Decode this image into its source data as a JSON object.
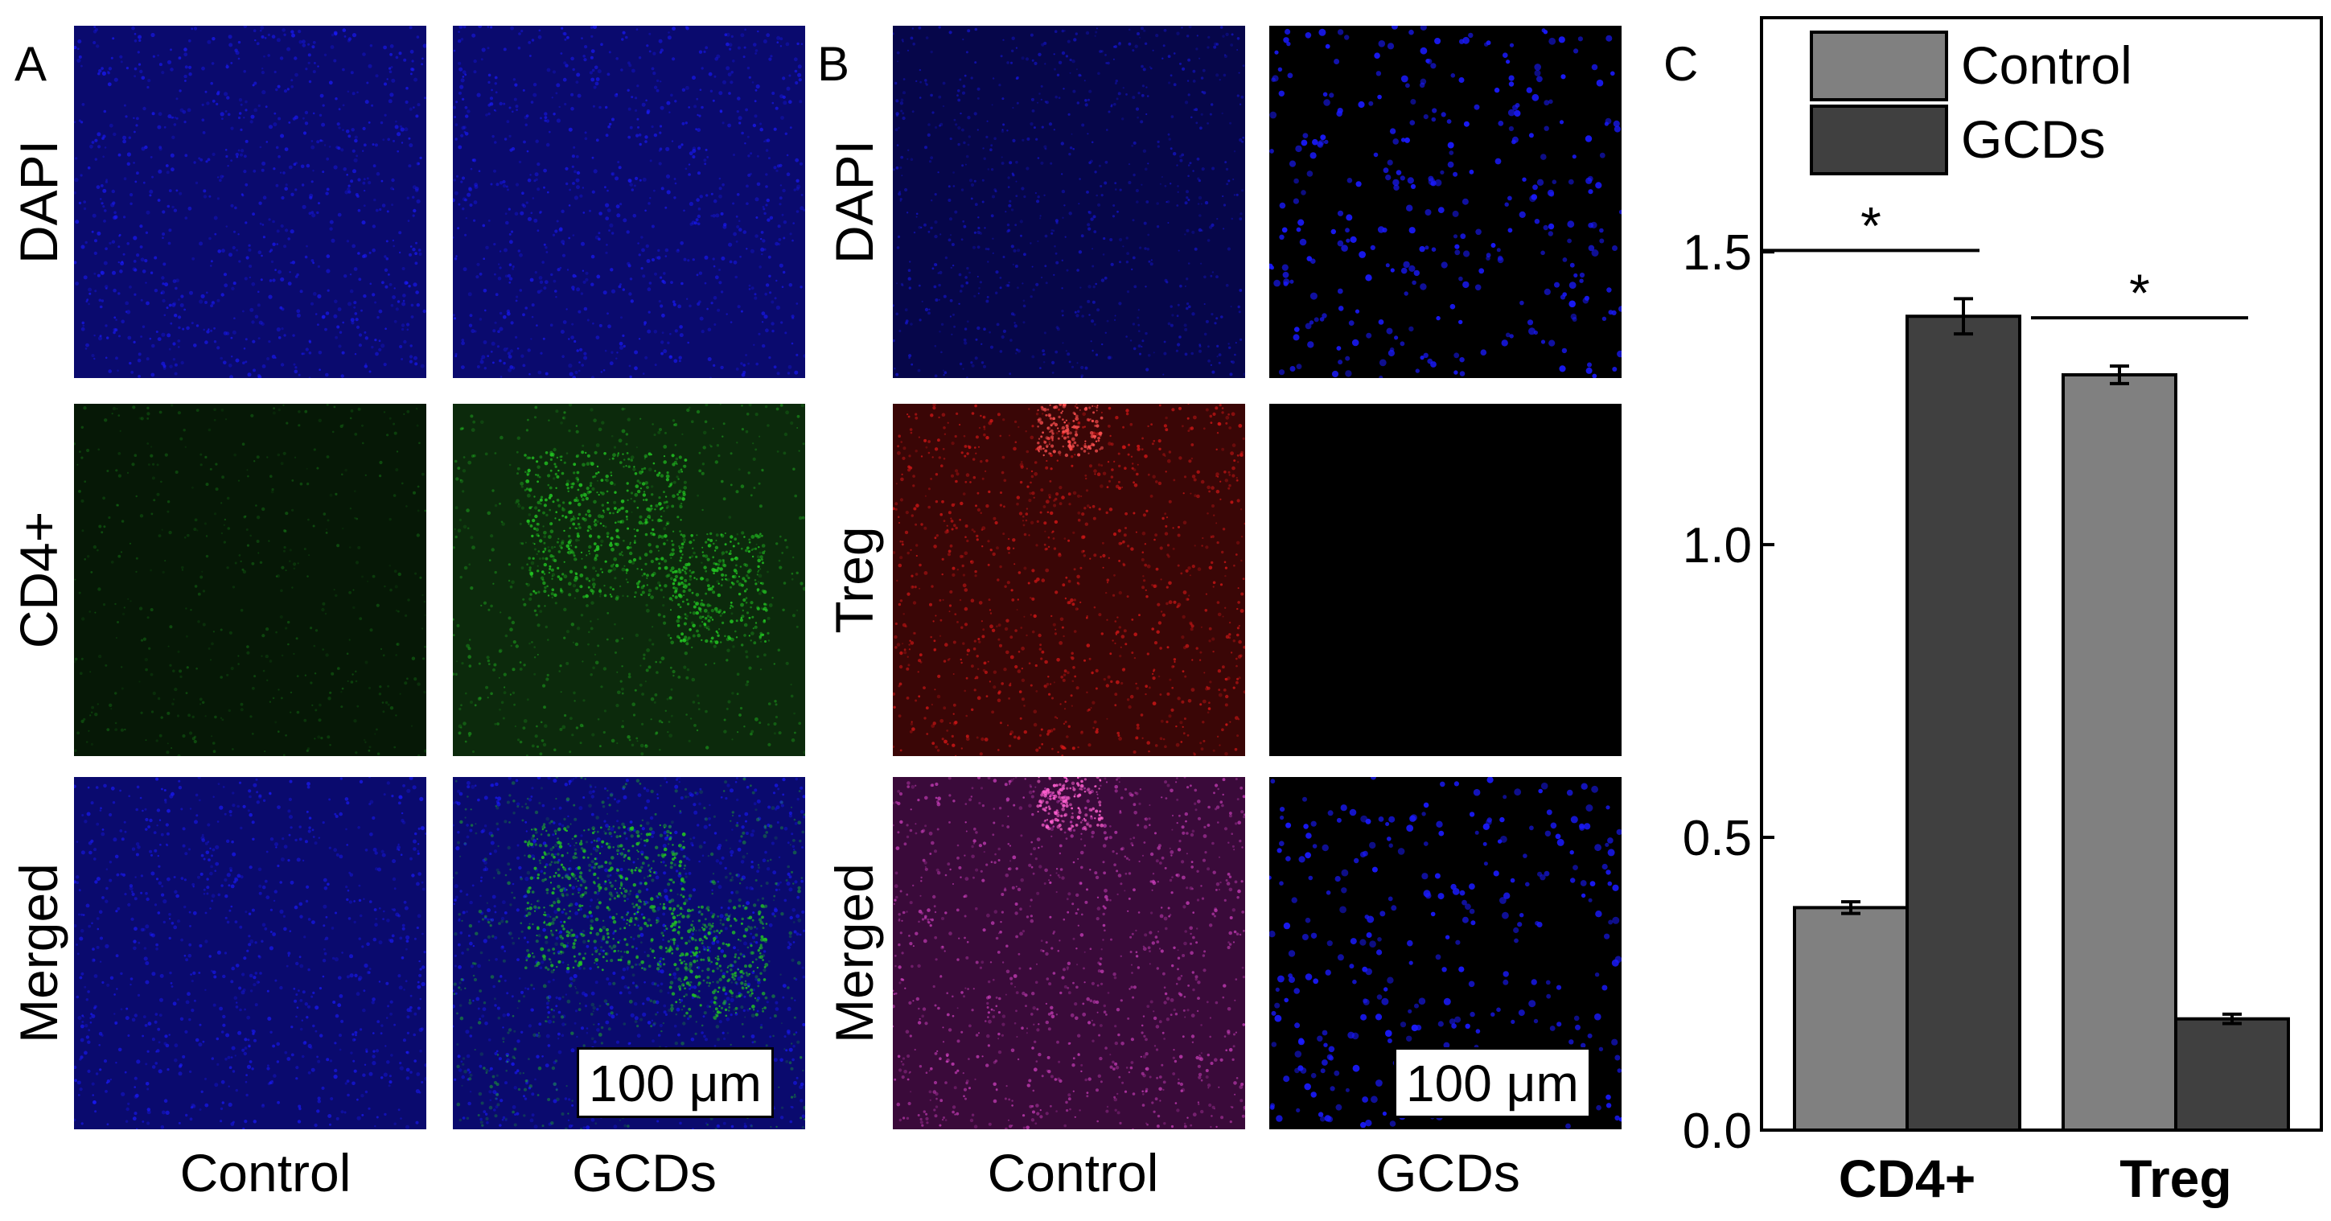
{
  "panels": {
    "a": {
      "letter": "A",
      "rows": [
        "DAPI",
        "CD4+",
        "Merged"
      ],
      "columns": [
        "Control",
        "GCDs"
      ],
      "scale_bar": "100 μm"
    },
    "b": {
      "letter": "B",
      "rows": [
        "DAPI",
        "Treg",
        "Merged"
      ],
      "columns": [
        "Control",
        "GCDs"
      ],
      "scale_bar": "100 μm"
    },
    "c": {
      "letter": "C"
    }
  },
  "colors": {
    "control": "#808080",
    "gcds": "#404040",
    "dapi": "#1a1aff",
    "cd4": "#22c422",
    "treg": "#e01818"
  },
  "chart_data": {
    "type": "bar",
    "categories": [
      "CD4+",
      "Treg"
    ],
    "series": [
      {
        "name": "Control",
        "values": [
          0.38,
          1.29
        ],
        "errors": [
          0.01,
          0.015
        ]
      },
      {
        "name": "GCDs",
        "values": [
          1.39,
          0.19
        ],
        "errors": [
          0.03,
          0.008
        ]
      }
    ],
    "ylim": [
      0.0,
      1.9
    ],
    "yticks": [
      "0.0",
      "0.5",
      "1.0",
      "1.5"
    ],
    "ytick_values": [
      0.0,
      0.5,
      1.0,
      1.5
    ],
    "legend_position": "top",
    "significance": [
      {
        "category": "CD4+",
        "label": "*"
      },
      {
        "category": "Treg",
        "label": "*"
      }
    ],
    "grid": false
  }
}
